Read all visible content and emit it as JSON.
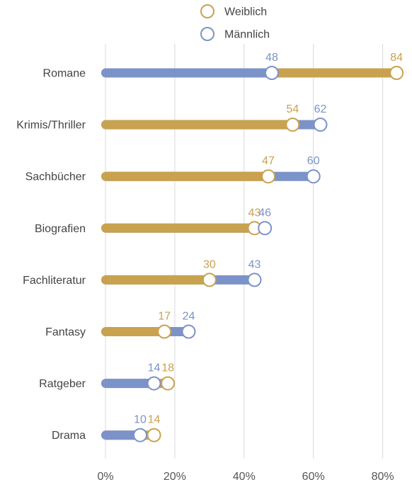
{
  "chart_data": {
    "type": "dot-bar",
    "title": "",
    "xlabel": "",
    "ylabel": "",
    "xlim": [
      0,
      88
    ],
    "x_ticks": [
      0,
      20,
      40,
      60,
      80
    ],
    "x_tick_labels": [
      "0%",
      "20%",
      "40%",
      "60%",
      "80%"
    ],
    "grid": "vertical",
    "legend_position": "top-center",
    "categories": [
      "Romane",
      "Krimis/Thriller",
      "Sachbücher",
      "Biografien",
      "Fachliteratur",
      "Fantasy",
      "Ratgeber",
      "Drama"
    ],
    "series": [
      {
        "name": "Weiblich",
        "color": "#c9a24f",
        "values": [
          84,
          54,
          47,
          43,
          30,
          17,
          18,
          14
        ]
      },
      {
        "name": "Männlich",
        "color": "#7b93c8",
        "values": [
          48,
          62,
          60,
          46,
          43,
          24,
          14,
          10
        ]
      }
    ]
  },
  "colors": {
    "grid": "#d8d8d8",
    "axis_text": "#555555",
    "category_text": "#444444",
    "marker_fill": "#ffffff"
  }
}
